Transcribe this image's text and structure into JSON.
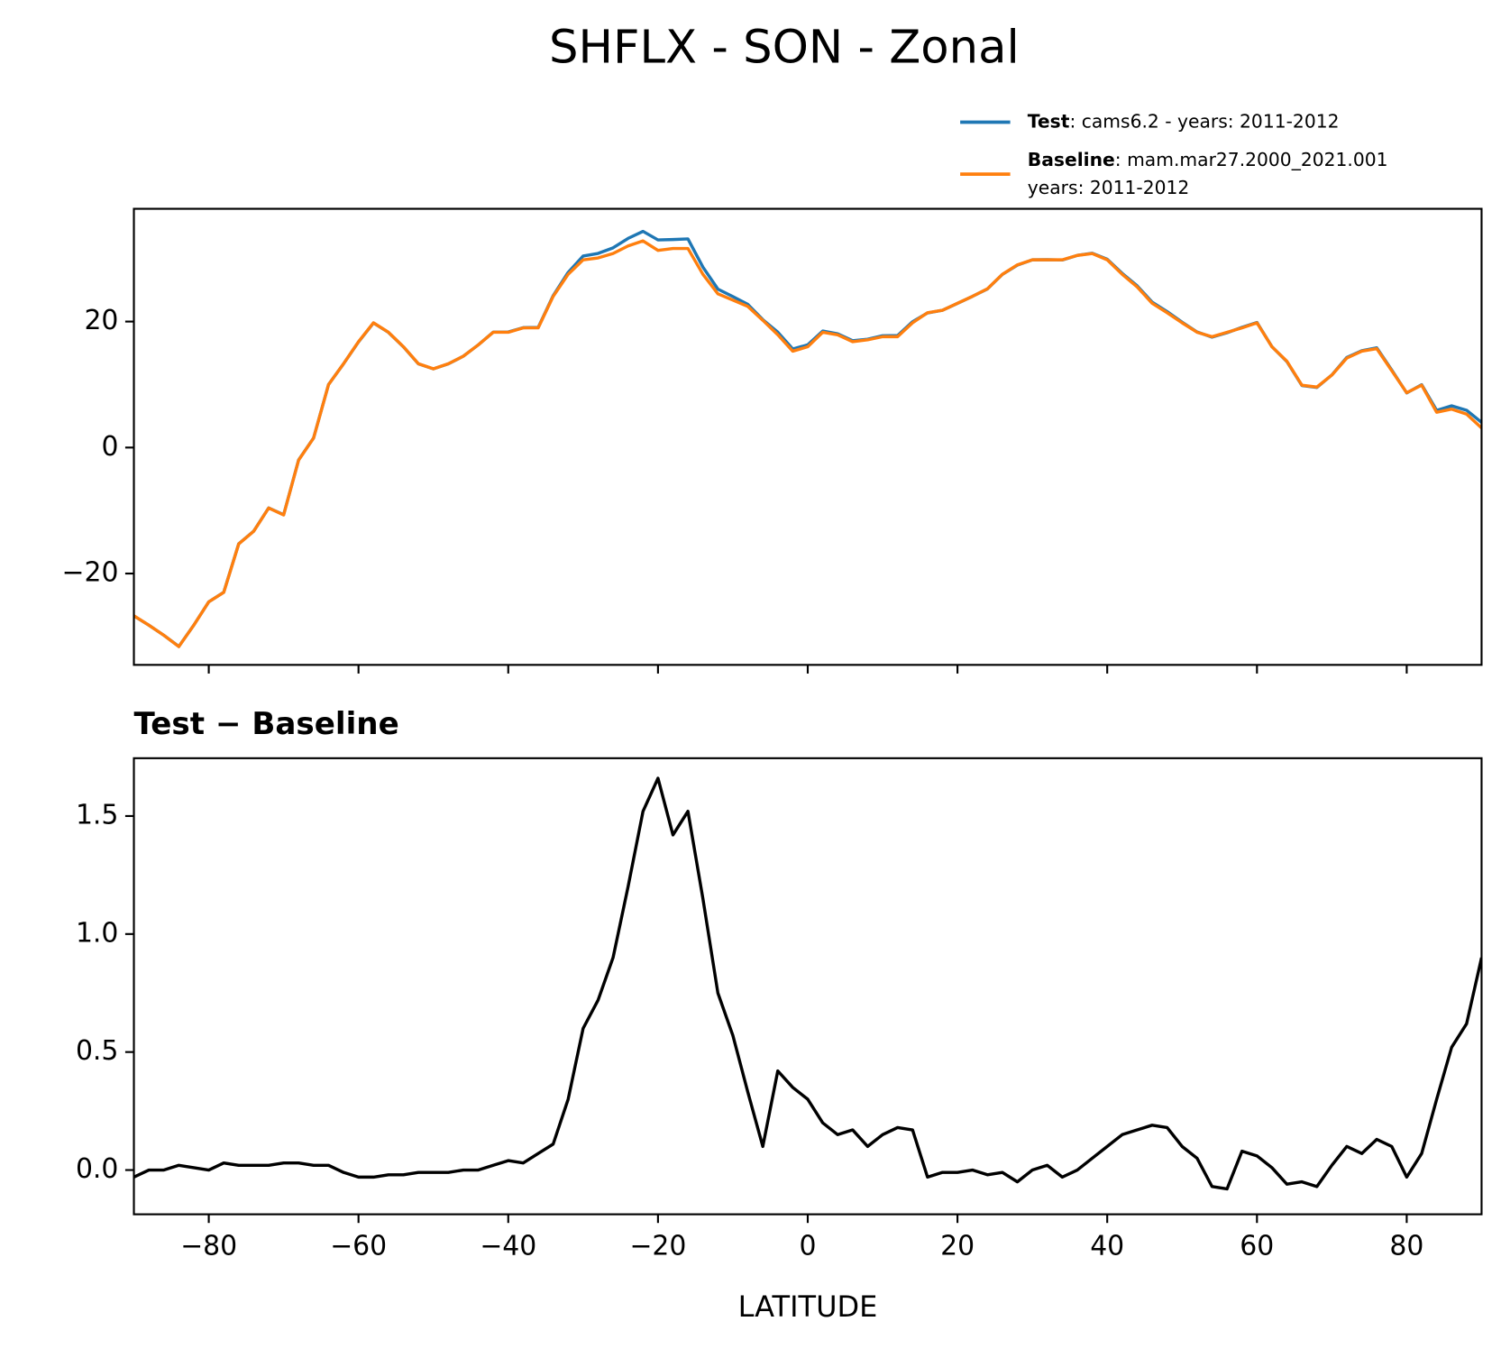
{
  "title": "SHFLX - SON - Zonal",
  "chart_data": [
    {
      "type": "line",
      "x": [
        -90,
        -88,
        -86,
        -84,
        -82,
        -80,
        -78,
        -76,
        -74,
        -72,
        -70,
        -68,
        -66,
        -64,
        -62,
        -60,
        -58,
        -56,
        -54,
        -52,
        -50,
        -48,
        -46,
        -44,
        -42,
        -40,
        -38,
        -36,
        -34,
        -32,
        -30,
        -28,
        -26,
        -24,
        -22,
        -20,
        -18,
        -16,
        -14,
        -12,
        -10,
        -8,
        -6,
        -4,
        -2,
        0,
        2,
        4,
        6,
        8,
        10,
        12,
        14,
        16,
        18,
        20,
        22,
        24,
        26,
        28,
        30,
        32,
        34,
        36,
        38,
        40,
        42,
        44,
        46,
        48,
        50,
        52,
        54,
        56,
        58,
        60,
        62,
        64,
        66,
        68,
        70,
        72,
        74,
        76,
        78,
        80,
        82,
        84,
        86,
        88,
        90
      ],
      "series": [
        {
          "name": "Test",
          "label_lines": [
            ": cams6.2 - years: 2011-2012"
          ],
          "color": "#1f77b4",
          "values": [
            -26.73,
            -28.2,
            -29.8,
            -31.58,
            -28.19,
            -24.5,
            -22.97,
            -15.28,
            -13.28,
            -9.58,
            -10.67,
            -1.97,
            1.52,
            10.02,
            13.29,
            16.77,
            19.77,
            18.28,
            15.98,
            13.29,
            12.49,
            13.29,
            14.5,
            16.3,
            18.32,
            18.34,
            19.03,
            19.07,
            24.11,
            27.8,
            30.4,
            30.82,
            31.7,
            33.2,
            34.32,
            32.96,
            33.02,
            33.12,
            28.65,
            25.15,
            23.97,
            22.73,
            20.3,
            18.32,
            15.65,
            16.3,
            18.5,
            18.05,
            16.97,
            17.2,
            17.75,
            17.78,
            19.97,
            21.37,
            21.79,
            22.89,
            24,
            25.18,
            27.49,
            28.95,
            29.8,
            29.82,
            29.77,
            30.5,
            30.85,
            29.9,
            27.65,
            25.67,
            23.09,
            21.58,
            19.9,
            18.35,
            17.53,
            18.22,
            19.08,
            19.86,
            16.01,
            13.64,
            9.85,
            9.53,
            11.52,
            14.3,
            15.37,
            15.83,
            12.3,
            8.67,
            9.97,
            5.9,
            6.62,
            5.92,
            4.0
          ]
        },
        {
          "name": "Baseline",
          "label_lines": [
            ": mam.mar27.2000_2021.001",
            "years: 2011-2012"
          ],
          "color": "#ff7f0e",
          "values": [
            -26.7,
            -28.2,
            -29.8,
            -31.6,
            -28.2,
            -24.5,
            -23,
            -15.3,
            -13.3,
            -9.6,
            -10.7,
            -2,
            1.5,
            10,
            13.3,
            16.8,
            19.8,
            18.3,
            16,
            13.3,
            12.5,
            13.3,
            14.5,
            16.3,
            18.3,
            18.3,
            19,
            19,
            24,
            27.5,
            29.8,
            30.1,
            30.8,
            32,
            32.8,
            31.3,
            31.6,
            31.6,
            27.5,
            24.4,
            23.4,
            22.4,
            20.2,
            17.9,
            15.3,
            16,
            18.3,
            17.9,
            16.8,
            17.1,
            17.6,
            17.6,
            19.8,
            21.4,
            21.8,
            22.9,
            24,
            25.2,
            27.5,
            29,
            29.8,
            29.8,
            29.8,
            30.5,
            30.8,
            29.8,
            27.5,
            25.5,
            22.9,
            21.4,
            19.8,
            18.3,
            17.6,
            18.3,
            19,
            19.8,
            16,
            13.7,
            9.9,
            9.6,
            11.5,
            14.2,
            15.3,
            15.7,
            12.2,
            8.7,
            9.9,
            5.6,
            6.1,
            5.3,
            3.1
          ]
        }
      ],
      "xlim": [
        -90,
        90
      ],
      "xticks": [
        -80,
        -60,
        -40,
        -20,
        0,
        20,
        40,
        60,
        80
      ],
      "xtick_labels": false,
      "ylim": [
        -34.5,
        37.9
      ],
      "yticks": [
        {
          "value": -20,
          "label": "−20"
        },
        0,
        20
      ],
      "legend": "upper right"
    },
    {
      "type": "line",
      "title": "Test − Baseline",
      "xlabel": "LATITUDE",
      "color": "#000000",
      "x": [
        -90,
        -88,
        -86,
        -84,
        -82,
        -80,
        -78,
        -76,
        -74,
        -72,
        -70,
        -68,
        -66,
        -64,
        -62,
        -60,
        -58,
        -56,
        -54,
        -52,
        -50,
        -48,
        -46,
        -44,
        -42,
        -40,
        -38,
        -36,
        -34,
        -32,
        -30,
        -28,
        -26,
        -24,
        -22,
        -20,
        -18,
        -16,
        -14,
        -12,
        -10,
        -8,
        -6,
        -4,
        -2,
        0,
        2,
        4,
        6,
        8,
        10,
        12,
        14,
        16,
        18,
        20,
        22,
        24,
        26,
        28,
        30,
        32,
        34,
        36,
        38,
        40,
        42,
        44,
        46,
        48,
        50,
        52,
        54,
        56,
        58,
        60,
        62,
        64,
        66,
        68,
        70,
        72,
        74,
        76,
        78,
        80,
        82,
        84,
        86,
        88,
        90
      ],
      "values": [
        -0.03,
        0,
        0,
        0.02,
        0.01,
        0,
        0.03,
        0.02,
        0.02,
        0.02,
        0.03,
        0.03,
        0.02,
        0.02,
        -0.01,
        -0.03,
        -0.03,
        -0.02,
        -0.02,
        -0.01,
        -0.01,
        -0.01,
        0,
        0,
        0.02,
        0.04,
        0.03,
        0.07,
        0.11,
        0.3,
        0.6,
        0.72,
        0.9,
        1.2,
        1.52,
        1.66,
        1.42,
        1.52,
        1.15,
        0.75,
        0.57,
        0.33,
        0.1,
        0.42,
        0.35,
        0.3,
        0.2,
        0.15,
        0.17,
        0.1,
        0.15,
        0.18,
        0.17,
        -0.03,
        -0.01,
        -0.01,
        0,
        -0.02,
        -0.01,
        -0.05,
        0,
        0.02,
        -0.03,
        0,
        0.05,
        0.1,
        0.15,
        0.17,
        0.19,
        0.18,
        0.1,
        0.05,
        -0.07,
        -0.08,
        0.08,
        0.06,
        0.01,
        -0.06,
        -0.05,
        -0.07,
        0.02,
        0.1,
        0.07,
        0.13,
        0.1,
        -0.03,
        0.07,
        0.3,
        0.52,
        0.62,
        0.9
      ],
      "xlim": [
        -90,
        90
      ],
      "xticks": [
        {
          "value": -80,
          "label": "−80"
        },
        {
          "value": -60,
          "label": "−60"
        },
        {
          "value": -40,
          "label": "−40"
        },
        {
          "value": -20,
          "label": "−20"
        },
        0,
        20,
        40,
        60,
        80
      ],
      "ylim": [
        -0.1875,
        1.745
      ],
      "yticks": [
        {
          "value": 0,
          "label": "0.0"
        },
        0.5,
        {
          "value": 1,
          "label": "1.0"
        },
        1.5
      ]
    }
  ]
}
